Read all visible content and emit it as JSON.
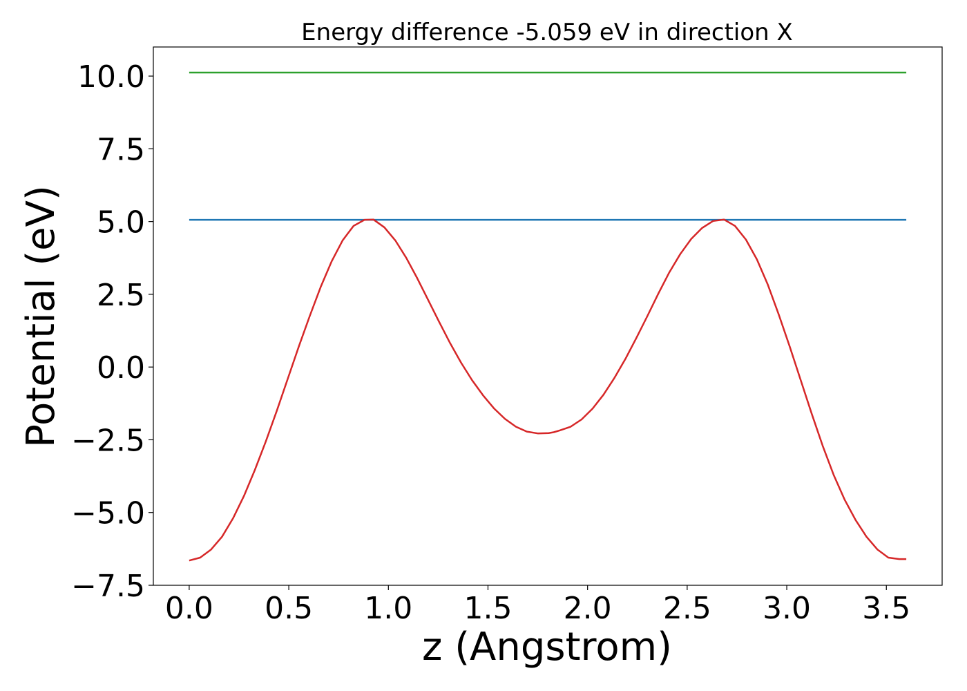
{
  "chart_data": {
    "type": "line",
    "title": "Energy difference -5.059 eV in direction X",
    "xlabel": "z (Angstrom)",
    "ylabel": "Potential (eV)",
    "xlim": [
      -0.18,
      3.78
    ],
    "ylim": [
      -7.5,
      11.0
    ],
    "grid": false,
    "x_ticks": [
      0.0,
      0.5,
      1.0,
      1.5,
      2.0,
      2.5,
      3.0,
      3.5
    ],
    "x_tick_labels": [
      "0.0",
      "0.5",
      "1.0",
      "1.5",
      "2.0",
      "2.5",
      "3.0",
      "3.5"
    ],
    "y_ticks": [
      -7.5,
      -5.0,
      -2.5,
      0.0,
      2.5,
      5.0,
      7.5,
      10.0
    ],
    "y_tick_labels": [
      "−7.5",
      "−5.0",
      "−2.5",
      "0.0",
      "2.5",
      "5.0",
      "7.5",
      "10.0"
    ],
    "series": [
      {
        "color": "#1f77b4",
        "x": [
          0.0,
          3.6
        ],
        "y": [
          5.06,
          5.06
        ]
      },
      {
        "color": "#2ca02c",
        "x": [
          0.0,
          3.6
        ],
        "y": [
          10.12,
          10.12
        ]
      },
      {
        "color": "#d62728",
        "x": [
          0.0,
          0.055,
          0.11,
          0.165,
          0.22,
          0.275,
          0.33,
          0.385,
          0.44,
          0.495,
          0.55,
          0.605,
          0.66,
          0.715,
          0.77,
          0.825,
          0.88,
          0.925,
          0.98,
          1.035,
          1.09,
          1.145,
          1.2,
          1.255,
          1.31,
          1.365,
          1.42,
          1.475,
          1.53,
          1.585,
          1.64,
          1.695,
          1.75,
          1.805,
          1.83,
          1.86,
          1.915,
          1.97,
          2.025,
          2.08,
          2.135,
          2.19,
          2.245,
          2.3,
          2.355,
          2.41,
          2.465,
          2.52,
          2.575,
          2.63,
          2.685,
          2.74,
          2.795,
          2.85,
          2.905,
          2.96,
          3.015,
          3.07,
          3.125,
          3.18,
          3.235,
          3.29,
          3.345,
          3.4,
          3.455,
          3.51,
          3.565,
          3.6
        ],
        "y": [
          -6.65,
          -6.55,
          -6.27,
          -5.83,
          -5.2,
          -4.43,
          -3.53,
          -2.55,
          -1.5,
          -0.4,
          0.7,
          1.75,
          2.75,
          3.63,
          4.35,
          4.85,
          5.06,
          5.07,
          4.8,
          4.35,
          3.75,
          3.05,
          2.3,
          1.55,
          0.82,
          0.15,
          -0.45,
          -0.97,
          -1.42,
          -1.78,
          -2.05,
          -2.22,
          -2.28,
          -2.27,
          -2.24,
          -2.18,
          -2.05,
          -1.8,
          -1.43,
          -0.95,
          -0.37,
          0.28,
          1.0,
          1.75,
          2.52,
          3.25,
          3.88,
          4.4,
          4.78,
          5.02,
          5.07,
          4.85,
          4.38,
          3.7,
          2.83,
          1.8,
          0.7,
          -0.45,
          -1.6,
          -2.7,
          -3.7,
          -4.55,
          -5.25,
          -5.83,
          -6.27,
          -6.55,
          -6.6,
          -6.6
        ]
      }
    ]
  }
}
